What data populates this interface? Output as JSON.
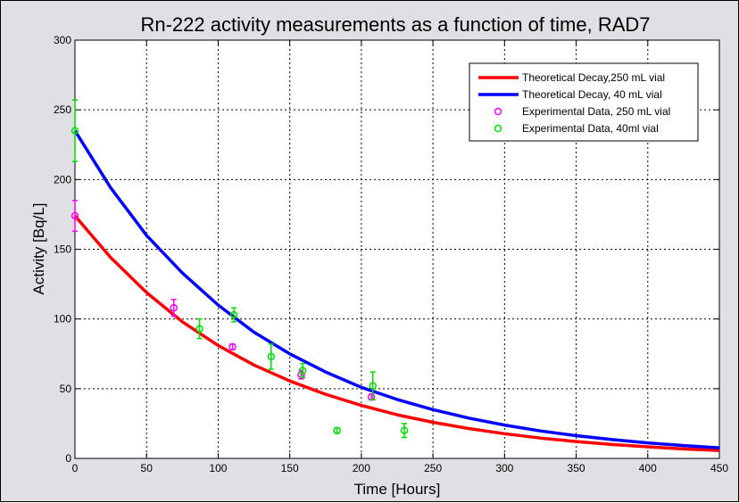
{
  "chart_data": {
    "type": "line",
    "title": "Rn-222 activity measurements as a function of time, RAD7",
    "xlabel": "Time [Hours]",
    "ylabel": "Activity [Bq/L]",
    "xlim": [
      0,
      450
    ],
    "ylim": [
      0,
      300
    ],
    "xticks": [
      "0",
      "50",
      "100",
      "150",
      "200",
      "250",
      "300",
      "350",
      "400",
      "450"
    ],
    "yticks": [
      "0",
      "50",
      "100",
      "150",
      "200",
      "250",
      "300"
    ],
    "grid": true,
    "legend_position": "top-right",
    "series": [
      {
        "name": "Theoretical Decay,250 mL vial",
        "kind": "line",
        "color": "#ff0000",
        "x": [
          0,
          25,
          50,
          75,
          100,
          125,
          150,
          175,
          200,
          225,
          250,
          275,
          300,
          325,
          350,
          375,
          400,
          425,
          450
        ],
        "y": [
          174,
          144,
          119,
          98,
          81,
          67,
          55.5,
          46,
          38,
          31.3,
          25.9,
          21.4,
          17.7,
          14.6,
          12.1,
          10.0,
          8.3,
          6.8,
          5.7
        ]
      },
      {
        "name": "Theoretical Decay, 40 mL vial",
        "kind": "line",
        "color": "#0000ff",
        "x": [
          0,
          25,
          50,
          75,
          100,
          125,
          150,
          175,
          200,
          225,
          250,
          275,
          300,
          325,
          350,
          375,
          400,
          425,
          450
        ],
        "y": [
          235,
          194,
          160,
          133,
          110,
          90.5,
          75,
          62,
          51,
          42.3,
          35,
          28.9,
          23.9,
          19.7,
          16.3,
          13.5,
          11.1,
          9.2,
          7.6
        ]
      },
      {
        "name": "Experimental Data, 250 mL vial",
        "kind": "scatter",
        "color": "#ff00ff",
        "x": [
          0,
          69,
          110,
          158,
          207
        ],
        "y": [
          174,
          108,
          80,
          60,
          44
        ],
        "err": [
          11,
          6,
          2,
          3,
          2
        ]
      },
      {
        "name": "Experimental Data, 40ml vial",
        "kind": "scatter",
        "color": "#00dd00",
        "x": [
          0,
          87,
          111,
          137,
          159,
          183,
          208,
          230
        ],
        "y": [
          235,
          93,
          103,
          73,
          63,
          20,
          52,
          20
        ],
        "err": [
          22,
          7,
          5,
          9,
          5,
          2,
          10,
          5
        ]
      }
    ]
  }
}
